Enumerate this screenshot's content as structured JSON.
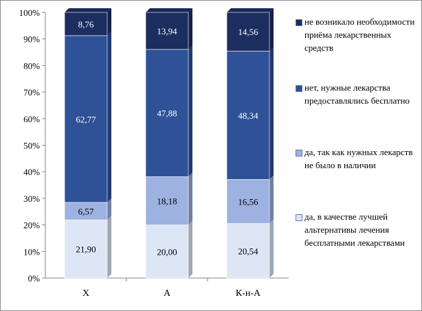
{
  "chart_data": {
    "type": "bar",
    "stacked": true,
    "percent": true,
    "categories": [
      "Х",
      "А",
      "К-н-А"
    ],
    "series": [
      {
        "name": "да, в качестве лучшей альтернативы лечения бесплатными лекарствами",
        "values": [
          21.9,
          20.0,
          20.54
        ],
        "labels": [
          "21,90",
          "20,00",
          "20,54"
        ],
        "color": "#dde6f5",
        "label_color": "#000000"
      },
      {
        "name": "да, так как нужных лекарств не было в наличии",
        "values": [
          6.57,
          18.18,
          16.56
        ],
        "labels": [
          "6,57",
          "18,18",
          "16,56"
        ],
        "color": "#9db2e0",
        "label_color": "#000000"
      },
      {
        "name": "нет, нужные лекарства предоставлялись бесплатно",
        "values": [
          62.77,
          47.88,
          48.34
        ],
        "labels": [
          "62,77",
          "47,88",
          "48,34"
        ],
        "color": "#2f5197",
        "label_color": "#ffffff"
      },
      {
        "name": "не возникало необходимости приёма лекарственных средств",
        "values": [
          8.76,
          13.94,
          14.56
        ],
        "labels": [
          "8,76",
          "13,94",
          "14,56"
        ],
        "color": "#1c2e60",
        "label_color": "#ffffff"
      }
    ],
    "yticks": [
      "0%",
      "10%",
      "20%",
      "30%",
      "40%",
      "50%",
      "60%",
      "70%",
      "80%",
      "90%",
      "100%"
    ],
    "ylim": [
      0,
      100
    ],
    "grid": false,
    "legend_position": "right"
  }
}
